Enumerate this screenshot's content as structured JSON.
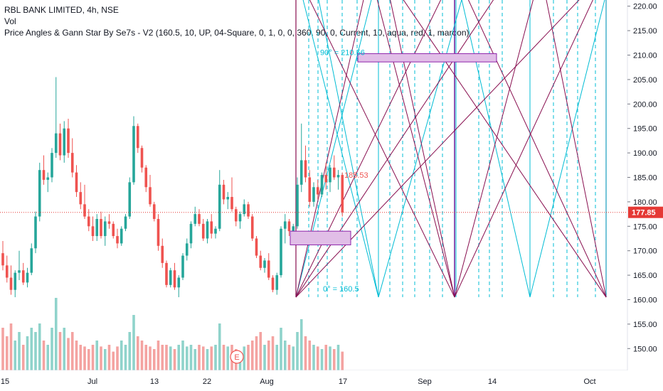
{
  "legend": {
    "symbol_line": "RBL BANK LIMITED, 4h, NSE",
    "volume_line": "Vol",
    "indicator_line": "Price Angles & Gann Star By Se7s - V2 (160.5, 10, UP, 04-Square, 0, 1, 0, 0, 360, 90, 0, Current, 10, aqua, red, 1, maroon)"
  },
  "colors": {
    "up": "#26a69a",
    "down": "#ef5350",
    "up_volume": "#8fd3cb",
    "down_volume": "#f4a3a1",
    "gann_cyan": "#00bcd4",
    "gann_maroon": "#880e4f",
    "box_fill": "#e1bee7",
    "box_stroke": "#8e24aa",
    "last_price": "#e53935"
  },
  "earnings_marker": "E",
  "chart_data": {
    "type": "candlestick",
    "title": "RBL BANK LIMITED, 4h, NSE",
    "x_tick_labels": [
      "15",
      "Jul",
      "13",
      "22",
      "Aug",
      "17",
      "Sep",
      "14",
      "Oct"
    ],
    "y_tick_labels": [
      "150.00",
      "155.00",
      "160.00",
      "165.00",
      "170.00",
      "175.00",
      "180.00",
      "185.00",
      "190.00",
      "195.00",
      "200.00",
      "205.00",
      "210.00",
      "215.00",
      "220.00"
    ],
    "ylim": [
      145,
      222
    ],
    "last_price": 177.85,
    "last_price_label": "177.85",
    "annotations": [
      {
        "text": "90° = 210.56",
        "price": 210.56,
        "color": "cyan"
      },
      {
        "text": "0° = 160.5",
        "price": 160.5,
        "color": "cyan"
      },
      {
        "text": "185.53",
        "price": 185.53,
        "color": "red"
      }
    ],
    "volume_scale_note": "relative",
    "candles": [
      [
        169.5,
        172.0,
        166.0,
        167.0
      ],
      [
        167.0,
        169.0,
        163.5,
        164.5
      ],
      [
        164.5,
        167.0,
        161.0,
        162.0
      ],
      [
        162.0,
        166.0,
        160.5,
        165.5
      ],
      [
        165.5,
        170.0,
        164.0,
        166.0
      ],
      [
        166.0,
        167.5,
        163.0,
        163.5
      ],
      [
        163.5,
        166.5,
        162.5,
        165.5
      ],
      [
        165.5,
        171.5,
        165.0,
        170.5
      ],
      [
        170.5,
        178.0,
        169.5,
        177.0
      ],
      [
        177.0,
        188.0,
        176.0,
        186.5
      ],
      [
        186.5,
        189.5,
        183.5,
        184.5
      ],
      [
        184.5,
        186.0,
        182.0,
        185.0
      ],
      [
        185.0,
        191.0,
        184.0,
        190.0
      ],
      [
        190.0,
        205.5,
        189.0,
        194.0
      ],
      [
        194.0,
        196.0,
        188.5,
        189.5
      ],
      [
        189.5,
        196.5,
        188.0,
        195.0
      ],
      [
        195.0,
        197.0,
        189.0,
        190.0
      ],
      [
        190.0,
        193.0,
        185.0,
        186.0
      ],
      [
        186.0,
        187.5,
        181.0,
        182.0
      ],
      [
        182.0,
        184.0,
        178.5,
        179.5
      ],
      [
        179.5,
        183.5,
        176.5,
        177.0
      ],
      [
        177.0,
        178.5,
        174.0,
        175.0
      ],
      [
        175.0,
        177.0,
        172.0,
        173.0
      ],
      [
        173.0,
        177.5,
        172.0,
        176.5
      ],
      [
        176.5,
        178.0,
        172.5,
        173.0
      ],
      [
        173.0,
        177.0,
        171.0,
        176.0
      ],
      [
        176.0,
        177.5,
        174.5,
        175.5
      ],
      [
        175.5,
        176.0,
        172.5,
        173.0
      ],
      [
        173.0,
        174.5,
        170.5,
        171.5
      ],
      [
        171.5,
        175.0,
        171.0,
        174.5
      ],
      [
        174.5,
        177.5,
        174.0,
        177.0
      ],
      [
        177.0,
        185.0,
        176.5,
        184.0
      ],
      [
        184.0,
        197.5,
        183.5,
        195.5
      ],
      [
        195.5,
        196.0,
        190.0,
        191.0
      ],
      [
        191.0,
        191.5,
        186.0,
        187.0
      ],
      [
        187.0,
        187.5,
        182.0,
        183.0
      ],
      [
        183.0,
        185.5,
        179.0,
        179.5
      ],
      [
        179.5,
        180.0,
        176.0,
        176.5
      ],
      [
        176.5,
        177.5,
        170.0,
        171.0
      ],
      [
        171.0,
        172.5,
        166.5,
        167.5
      ],
      [
        167.5,
        168.0,
        162.5,
        163.0
      ],
      [
        163.0,
        166.5,
        162.5,
        166.0
      ],
      [
        166.0,
        167.5,
        162.0,
        162.5
      ],
      [
        162.5,
        165.0,
        160.5,
        164.5
      ],
      [
        164.5,
        169.5,
        164.0,
        169.0
      ],
      [
        169.0,
        172.5,
        168.0,
        171.5
      ],
      [
        171.5,
        176.0,
        170.5,
        175.5
      ],
      [
        175.5,
        179.0,
        175.0,
        177.5
      ],
      [
        177.5,
        178.5,
        175.0,
        175.5
      ],
      [
        175.5,
        176.5,
        172.0,
        172.5
      ],
      [
        172.5,
        176.5,
        171.5,
        176.0
      ],
      [
        176.0,
        177.5,
        172.5,
        173.5
      ],
      [
        173.5,
        175.0,
        172.5,
        174.5
      ],
      [
        174.5,
        186.5,
        174.0,
        183.5
      ],
      [
        183.5,
        184.5,
        179.5,
        180.5
      ],
      [
        180.5,
        182.0,
        178.5,
        181.0
      ],
      [
        181.0,
        185.0,
        178.0,
        178.5
      ],
      [
        178.5,
        179.0,
        175.0,
        176.0
      ],
      [
        176.0,
        178.0,
        174.5,
        177.5
      ],
      [
        177.5,
        180.5,
        177.0,
        179.5
      ],
      [
        179.5,
        180.0,
        176.5,
        177.0
      ],
      [
        177.0,
        177.5,
        172.0,
        172.5
      ],
      [
        172.5,
        173.0,
        168.5,
        169.0
      ],
      [
        169.0,
        170.0,
        166.0,
        166.5
      ],
      [
        166.5,
        168.5,
        165.5,
        168.0
      ],
      [
        168.0,
        169.5,
        164.0,
        164.5
      ],
      [
        164.5,
        165.0,
        161.5,
        162.0
      ],
      [
        162.0,
        165.5,
        161.0,
        165.0
      ],
      [
        165.0,
        175.0,
        164.5,
        174.5
      ],
      [
        174.5,
        177.5,
        171.5,
        176.0
      ],
      [
        176.0,
        176.5,
        173.0,
        174.0
      ],
      [
        174.0,
        175.5,
        173.0,
        175.0
      ],
      [
        175.0,
        185.0,
        174.5,
        183.5
      ],
      [
        183.5,
        196.0,
        182.0,
        188.5
      ],
      [
        188.5,
        191.5,
        184.0,
        185.0
      ],
      [
        185.0,
        186.5,
        179.0,
        180.0
      ],
      [
        180.0,
        184.0,
        179.0,
        183.0
      ],
      [
        183.0,
        184.5,
        180.5,
        181.5
      ],
      [
        181.5,
        186.0,
        181.0,
        185.5
      ],
      [
        185.5,
        188.0,
        182.5,
        184.0
      ],
      [
        184.0,
        187.5,
        182.0,
        187.0
      ],
      [
        187.0,
        189.5,
        184.5,
        185.0
      ],
      [
        185.0,
        186.5,
        182.5,
        185.5
      ],
      [
        185.5,
        186.0,
        177.0,
        177.85
      ]
    ],
    "volumes": [
      0.5,
      0.4,
      0.55,
      0.35,
      0.45,
      0.3,
      0.4,
      0.5,
      0.45,
      0.55,
      0.35,
      0.3,
      0.5,
      0.85,
      0.45,
      0.5,
      0.38,
      0.45,
      0.35,
      0.3,
      0.28,
      0.25,
      0.3,
      0.35,
      0.28,
      0.25,
      0.3,
      0.22,
      0.28,
      0.35,
      0.3,
      0.45,
      0.65,
      0.4,
      0.35,
      0.3,
      0.28,
      0.25,
      0.35,
      0.3,
      0.3,
      0.28,
      0.25,
      0.3,
      0.35,
      0.28,
      0.3,
      0.25,
      0.3,
      0.28,
      0.25,
      0.28,
      0.3,
      0.55,
      0.3,
      0.28,
      0.3,
      0.25,
      0.22,
      0.28,
      0.3,
      0.35,
      0.4,
      0.45,
      0.3,
      0.35,
      0.4,
      0.3,
      0.5,
      0.35,
      0.3,
      0.28,
      0.45,
      0.6,
      0.4,
      0.35,
      0.3,
      0.28,
      0.25,
      0.3,
      0.28,
      0.25,
      0.3,
      0.22
    ]
  }
}
